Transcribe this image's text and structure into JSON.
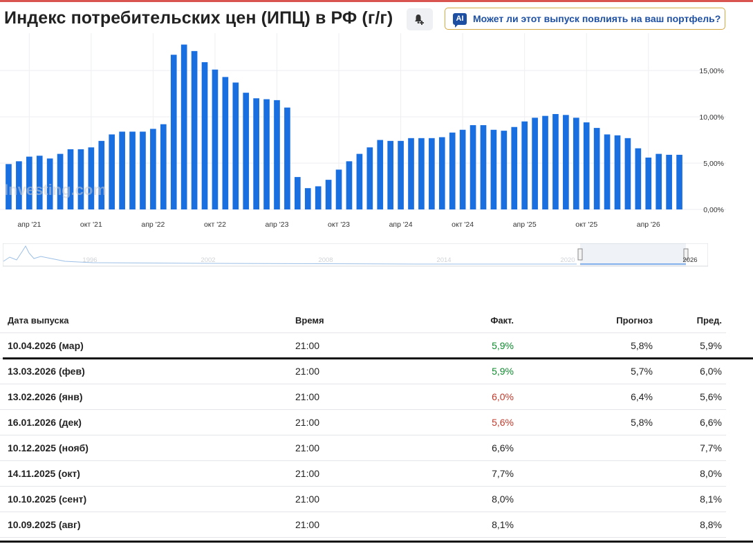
{
  "header": {
    "title": "Индекс потребительских цен (ИПЦ) в РФ (г/г)",
    "ai_badge": "AI",
    "ai_button_label": "Может ли этот выпуск повлиять на ваш портфель?"
  },
  "watermark": "Investing.com",
  "navigator": {
    "year_labels": [
      "1996",
      "2002",
      "2008",
      "2014",
      "2020",
      "2026"
    ]
  },
  "chart_data": {
    "type": "bar",
    "color": "#1a6fe0",
    "y_axis_side": "right",
    "ylim": [
      0,
      18
    ],
    "y_ticks": [
      "0,00%",
      "5,00%",
      "10,00%",
      "15,00%"
    ],
    "y_tick_values": [
      0,
      5,
      10,
      15
    ],
    "x_tick_labels": [
      {
        "label": "апр '21",
        "index": 2
      },
      {
        "label": "окт '21",
        "index": 8
      },
      {
        "label": "апр '22",
        "index": 14
      },
      {
        "label": "окт '22",
        "index": 20
      },
      {
        "label": "апр '23",
        "index": 26
      },
      {
        "label": "окт '23",
        "index": 32
      },
      {
        "label": "апр '24",
        "index": 38
      },
      {
        "label": "окт '24",
        "index": 44
      },
      {
        "label": "апр '25",
        "index": 50
      },
      {
        "label": "окт '25",
        "index": 56
      },
      {
        "label": "апр '26",
        "index": 62
      }
    ],
    "values": [
      4.9,
      5.2,
      5.7,
      5.8,
      5.5,
      6.0,
      6.5,
      6.5,
      6.7,
      7.4,
      8.1,
      8.4,
      8.4,
      8.4,
      8.7,
      9.2,
      16.7,
      17.8,
      17.1,
      15.9,
      15.1,
      14.3,
      13.7,
      12.6,
      12.0,
      11.9,
      11.8,
      11.0,
      3.5,
      2.3,
      2.5,
      3.2,
      4.3,
      5.2,
      6.0,
      6.7,
      7.5,
      7.4,
      7.4,
      7.7,
      7.7,
      7.7,
      7.8,
      8.3,
      8.6,
      9.1,
      9.1,
      8.6,
      8.5,
      8.9,
      9.5,
      9.9,
      10.1,
      10.3,
      10.2,
      9.9,
      9.4,
      8.8,
      8.1,
      8.0,
      7.7,
      6.6,
      5.6,
      6.0,
      5.9,
      5.9
    ]
  },
  "table": {
    "headers": {
      "date": "Дата выпуска",
      "time": "Время",
      "actual": "Факт.",
      "forecast": "Прогноз",
      "previous": "Пред."
    },
    "rows": [
      {
        "date": "10.04.2026 (мар)",
        "time": "21:00",
        "actual": "5,9%",
        "actual_color": "green",
        "forecast": "5,8%",
        "previous": "5,9%"
      },
      {
        "date": "13.03.2026 (фев)",
        "time": "21:00",
        "actual": "5,9%",
        "actual_color": "green",
        "forecast": "5,7%",
        "previous": "6,0%"
      },
      {
        "date": "13.02.2026 (янв)",
        "time": "21:00",
        "actual": "6,0%",
        "actual_color": "red",
        "forecast": "6,4%",
        "previous": "5,6%"
      },
      {
        "date": "16.01.2026 (дек)",
        "time": "21:00",
        "actual": "5,6%",
        "actual_color": "red",
        "forecast": "5,8%",
        "previous": "6,6%"
      },
      {
        "date": "10.12.2025 (нояб)",
        "time": "21:00",
        "actual": "6,6%",
        "actual_color": "",
        "forecast": "",
        "previous": "7,7%"
      },
      {
        "date": "14.11.2025 (окт)",
        "time": "21:00",
        "actual": "7,7%",
        "actual_color": "",
        "forecast": "",
        "previous": "8,0%"
      },
      {
        "date": "10.10.2025 (сент)",
        "time": "21:00",
        "actual": "8,0%",
        "actual_color": "",
        "forecast": "",
        "previous": "8,1%"
      },
      {
        "date": "10.09.2025 (авг)",
        "time": "21:00",
        "actual": "8,1%",
        "actual_color": "",
        "forecast": "",
        "previous": "8,8%"
      }
    ]
  }
}
